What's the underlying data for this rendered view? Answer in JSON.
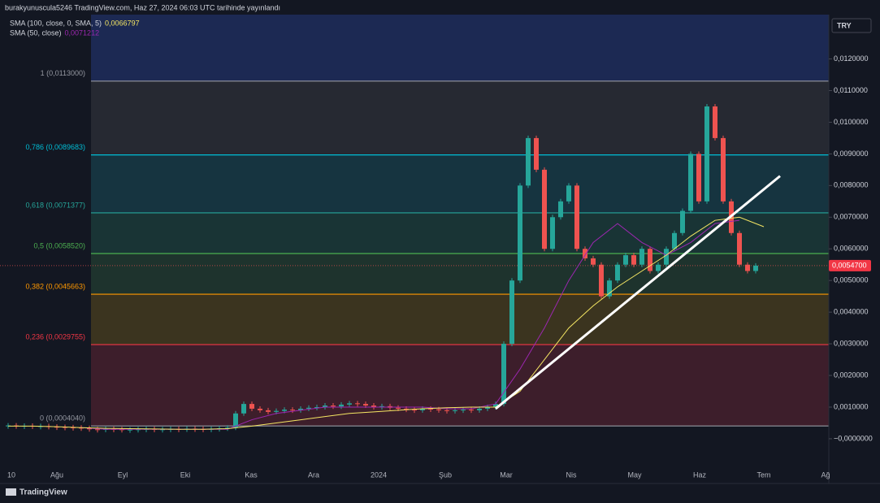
{
  "chart_data": {
    "type": "candlestick",
    "title": "burakyunuscula5246 TradingView.com, Haz 27, 2024 06:03 UTC tarihinde yayınlandı",
    "currency": "TRY",
    "brand": "TradingView",
    "indicators": [
      {
        "name": "SMA (100, close, 0, SMA, 5)",
        "value_label": "0,0066797",
        "color": "#f5e663"
      },
      {
        "name": "SMA (50, close)",
        "value_label": "0,0071212",
        "color": "#9c27b0"
      }
    ],
    "ylim": [
      -0.0009,
      0.0134
    ],
    "yticks": [
      {
        "value": 0.012,
        "label": "0,0120000"
      },
      {
        "value": 0.011,
        "label": "0,0110000"
      },
      {
        "value": 0.01,
        "label": "0,0100000"
      },
      {
        "value": 0.009,
        "label": "0,0090000"
      },
      {
        "value": 0.008,
        "label": "0,0080000"
      },
      {
        "value": 0.007,
        "label": "0,0070000"
      },
      {
        "value": 0.006,
        "label": "0,0060000"
      },
      {
        "value": 0.005,
        "label": "0,0050000"
      },
      {
        "value": 0.004,
        "label": "0,0040000"
      },
      {
        "value": 0.003,
        "label": "0,0030000"
      },
      {
        "value": 0.002,
        "label": "0,0020000"
      },
      {
        "value": 0.001,
        "label": "0,0010000"
      },
      {
        "value": 0,
        "label": "−0,0000000"
      }
    ],
    "time_labels": [
      "10",
      "Ağu",
      "Eyl",
      "Eki",
      "Kas",
      "Ara",
      "2024",
      "Şub",
      "Mar",
      "Nis",
      "May",
      "Haz",
      "Tem",
      "Ağ"
    ],
    "fib_levels": [
      {
        "value": 0.0113,
        "label": "1 (0,0113000)",
        "color": "#9598a1",
        "fill": "#2a2d35"
      },
      {
        "value": 0.0089683,
        "label": "0,786 (0,0089683)",
        "color": "#00bcd4",
        "fill": "#173a45"
      },
      {
        "value": 0.0071377,
        "label": "0,618 (0,0071377)",
        "color": "#26a69a",
        "fill": "#1b3a38"
      },
      {
        "value": 0.005852,
        "label": "0,5 (0,0058520)",
        "color": "#4caf50",
        "fill": "#21382f"
      },
      {
        "value": 0.0045663,
        "label": "0,382 (0,0045663)",
        "color": "#ff9800",
        "fill": "#43391f"
      },
      {
        "value": 0.0029755,
        "label": "0,236 (0,0029755)",
        "color": "#f23645",
        "fill": "#45202d"
      },
      {
        "value": 0.000404,
        "label": "0 (0,0004040)",
        "color": "#9598a1",
        "fill": null
      }
    ],
    "top_fill": "#1e2d5c",
    "last_price": {
      "value": 0.00547,
      "label": "0,0054700"
    },
    "up_color": "#26a69a",
    "down_color": "#ef5350",
    "closes": [
      0.00042,
      0.0004,
      0.00041,
      0.00039,
      0.0004,
      0.00038,
      0.00037,
      0.00036,
      0.00035,
      0.00034,
      0.0003,
      0.00029,
      0.00031,
      0.0003,
      0.00028,
      0.00029,
      0.0003,
      0.00031,
      0.00029,
      0.0003,
      0.00031,
      0.0003,
      0.00032,
      0.00031,
      0.0003,
      0.00031,
      0.00033,
      0.00035,
      0.0008,
      0.0011,
      0.00095,
      0.0009,
      0.00085,
      0.00088,
      0.00092,
      0.0009,
      0.00095,
      0.00098,
      0.001,
      0.00105,
      0.00102,
      0.00108,
      0.00112,
      0.0011,
      0.00105,
      0.001,
      0.00103,
      0.00098,
      0.00095,
      0.00092,
      0.0009,
      0.00095,
      0.00093,
      0.0009,
      0.00088,
      0.0009,
      0.00092,
      0.0009,
      0.00095,
      0.001,
      0.0011,
      0.003,
      0.005,
      0.008,
      0.0095,
      0.0085,
      0.006,
      0.007,
      0.0075,
      0.008,
      0.006,
      0.0057,
      0.0055,
      0.0045,
      0.005,
      0.0055,
      0.0058,
      0.0055,
      0.006,
      0.0053,
      0.0055,
      0.006,
      0.0065,
      0.0072,
      0.009,
      0.0075,
      0.0105,
      0.0095,
      0.0075,
      0.0065,
      0.0055,
      0.0053,
      0.00547
    ],
    "sma100": [
      0.0004,
      0.0004,
      0.00038,
      0.00035,
      0.00033,
      0.00032,
      0.00031,
      0.0003,
      0.0003,
      0.00032,
      0.0004,
      0.0005,
      0.0006,
      0.0007,
      0.0008,
      0.00085,
      0.0009,
      0.00095,
      0.00098,
      0.001,
      0.001,
      0.0015,
      0.0025,
      0.0035,
      0.0042,
      0.0048,
      0.0053,
      0.0058,
      0.0064,
      0.0069,
      0.007,
      0.0067
    ],
    "sma50": [
      null,
      null,
      null,
      0.00035,
      0.0003,
      0.0003,
      0.0003,
      0.0003,
      0.0003,
      0.0003,
      0.0006,
      0.0008,
      0.0009,
      0.001,
      0.001,
      0.001,
      0.001,
      0.001,
      0.00095,
      0.00095,
      0.0011,
      0.0022,
      0.0035,
      0.005,
      0.0062,
      0.0068,
      0.0062,
      0.0058,
      0.0062,
      0.0068,
      0.0069,
      null
    ],
    "trendline": [
      0.00095,
      0.0083
    ]
  }
}
